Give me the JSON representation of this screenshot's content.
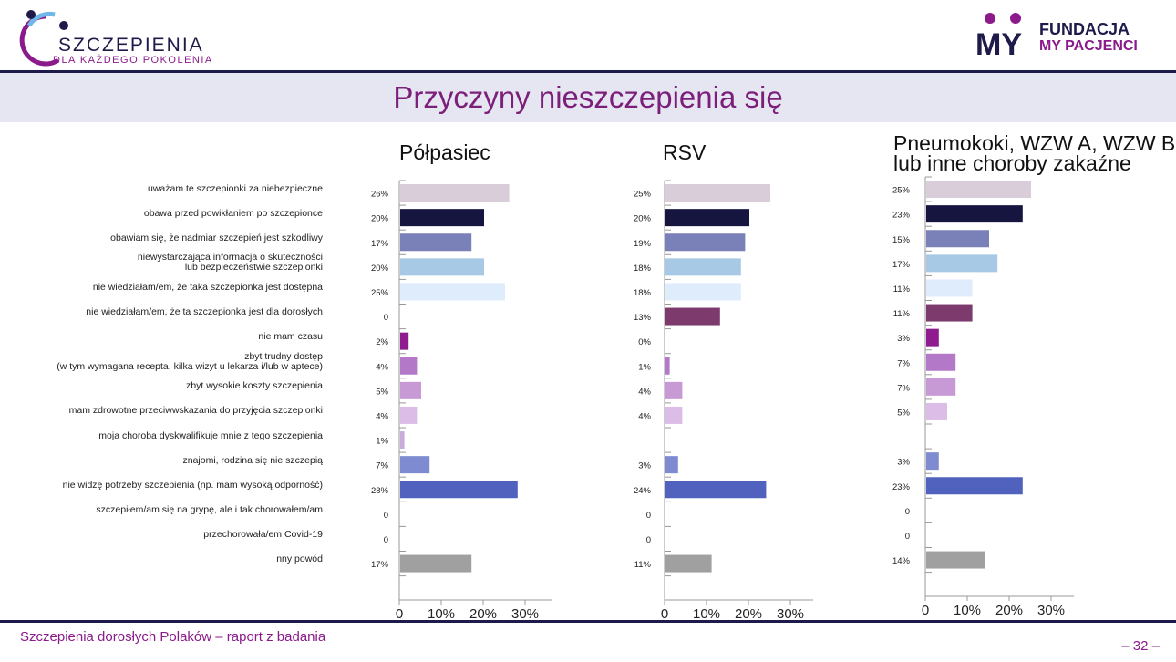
{
  "header": {
    "left_logo": {
      "title": "SZCZEPIENIA",
      "subtitle": "DLA KAŻDEGO POKOLENIA"
    },
    "right_logo": {
      "line1": "FUNDACJA",
      "line2": "MY PACJENCI",
      "mark": "MY"
    },
    "slide_title": "Przyczyny nieszczepienia się"
  },
  "footer": {
    "report": "Szczepienia dorosłych Polaków – raport z badania",
    "page": "– 32 –"
  },
  "categories": [
    [
      "uważam te szczepionki za niebezpieczne"
    ],
    [
      "obawa przed powikłaniem po szczepionce"
    ],
    [
      "obawiam się, że nadmiar szczepień jest szkodliwy"
    ],
    [
      "niewystarczająca informacja o skuteczności",
      "lub bezpieczeństwie szczepionki"
    ],
    [
      "nie wiedziałam/em, że taka szczepionka jest dostępna"
    ],
    [
      "nie wiedziałam/em, że ta szczepionka jest dla dorosłych"
    ],
    [
      "nie mam czasu"
    ],
    [
      "zbyt trudny dostęp",
      "(w tym wymagana recepta, kilka wizyt u lekarza i/lub w aptece)"
    ],
    [
      "zbyt wysokie koszty szczepienia"
    ],
    [
      "mam zdrowotne przeciwwskazania do przyjęcia szczepionki"
    ],
    [
      "moja choroba dyskwalifikuje mnie z tego szczepienia"
    ],
    [
      "znajomi, rodzina się nie szczepią"
    ],
    [
      "nie widzę potrzeby szczepienia (np. mam wysoką odporność)"
    ],
    [
      "szczepiłem/am się na grypę, ale i tak chorowałem/am"
    ],
    [
      "przechorowała/em Covid-19"
    ],
    [
      "nny powód"
    ]
  ],
  "colors": [
    "#d8cdd8",
    "#161540",
    "#7a80b8",
    "#a7c9e6",
    "#deecfb",
    "#7c3b6c",
    "#8e1c8e",
    "#b478c8",
    "#c79ad6",
    "#dcbde8",
    "#c8addc",
    "#7f8bd0",
    "#5062bd",
    "#cccccc",
    "#cccccc",
    "#a0a0a0"
  ],
  "chart_data": [
    {
      "type": "bar",
      "title": [
        "Półpasiec"
      ],
      "values": [
        26,
        20,
        17,
        20,
        25,
        0,
        2,
        4,
        5,
        4,
        1,
        7,
        28,
        0,
        0,
        17
      ],
      "labels": [
        "26%",
        "20%",
        "17%",
        "20%",
        "25%",
        "0",
        "2%",
        "4%",
        "5%",
        "4%",
        "1%",
        "7%",
        "28%",
        "0",
        "0",
        "17%"
      ],
      "xlim": [
        0,
        36
      ],
      "xticks": [
        "0",
        "10%",
        "20%",
        "30%"
      ],
      "xtick_values": [
        0,
        10,
        20,
        30
      ]
    },
    {
      "type": "bar",
      "title": [
        "RSV"
      ],
      "values": [
        25,
        20,
        19,
        18,
        18,
        13,
        0,
        1,
        4,
        4,
        null,
        3,
        24,
        0,
        0,
        11
      ],
      "labels": [
        "25%",
        "20%",
        "19%",
        "18%",
        "18%",
        "13%",
        "0%",
        "1%",
        "4%",
        "4%",
        "",
        "3%",
        "24%",
        "0",
        "0",
        "11%"
      ],
      "xlim": [
        0,
        36
      ],
      "xticks": [
        "0",
        "10%",
        "20%",
        "30%"
      ],
      "xtick_values": [
        0,
        10,
        20,
        30
      ]
    },
    {
      "type": "bar",
      "title": [
        "Pneumokoki, WZW A, WZW B",
        "lub inne choroby zakaźne"
      ],
      "values": [
        25,
        23,
        15,
        17,
        11,
        11,
        3,
        7,
        7,
        5,
        null,
        3,
        23,
        0,
        0,
        14
      ],
      "labels": [
        "25%",
        "23%",
        "15%",
        "17%",
        "11%",
        "11%",
        "3%",
        "7%",
        "7%",
        "5%",
        "",
        "3%",
        "23%",
        "0",
        "0",
        "14%"
      ],
      "xlim": [
        0,
        36
      ],
      "xticks": [
        "0",
        "10%",
        "20%",
        "30%"
      ],
      "xtick_values": [
        0,
        10,
        20,
        30
      ]
    }
  ]
}
